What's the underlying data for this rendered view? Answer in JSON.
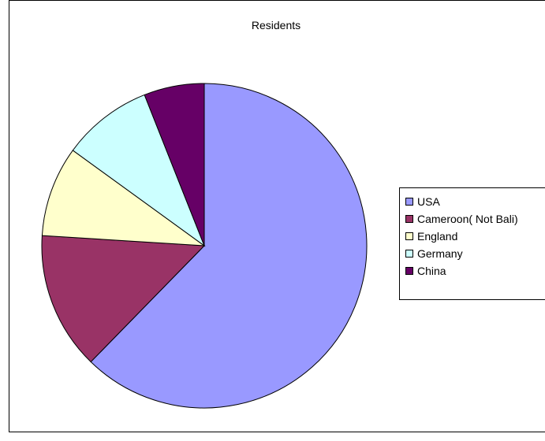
{
  "chart_data": {
    "type": "pie",
    "title": "Residents",
    "categories": [
      "USA",
      "Cameroon( Not Bali)",
      "England",
      "Germany",
      "China"
    ],
    "values": [
      62.3,
      13.7,
      9.0,
      9.0,
      6.0
    ],
    "colors": [
      "#9999ff",
      "#993366",
      "#ffffcc",
      "#ccffff",
      "#660066"
    ],
    "start_angle_deg": 0,
    "direction": "clockwise",
    "legend_position": "right"
  }
}
